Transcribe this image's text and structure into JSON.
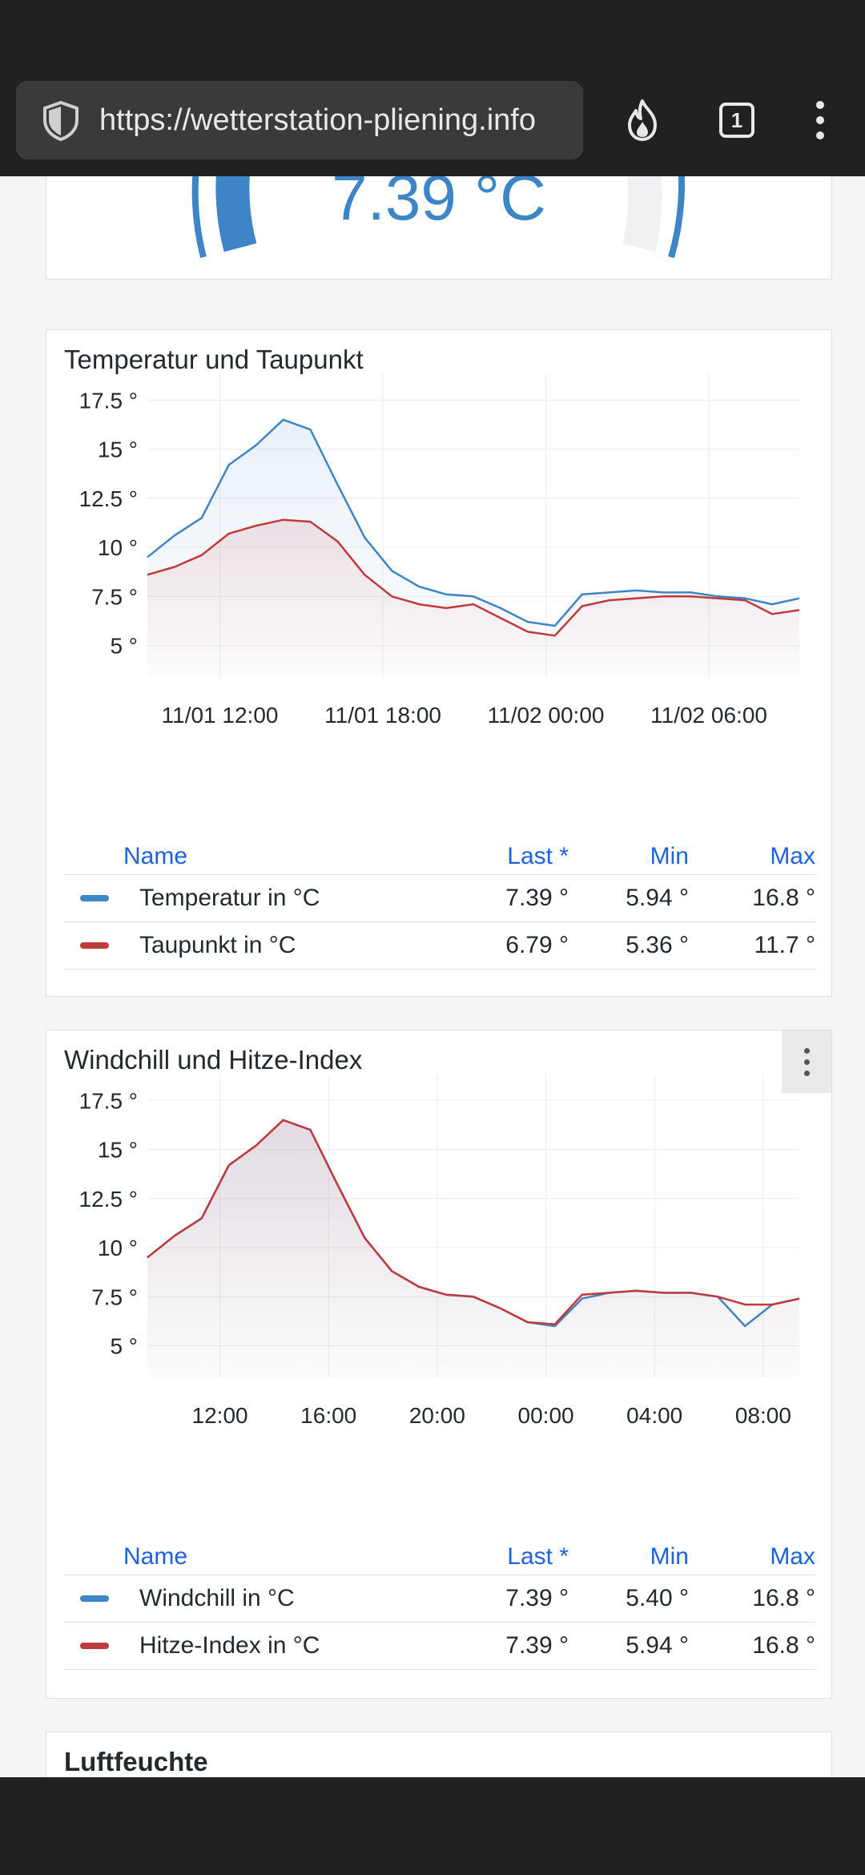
{
  "browser": {
    "url": "https://wetterstation-pliening.info",
    "tab_count": "1",
    "icons": {
      "shield": "shield-icon",
      "fire": "fire-icon",
      "tabs": "tabs-icon",
      "menu": "menu-icon"
    }
  },
  "gauge_panel": {
    "value": "7.39 °C",
    "color": "#3d85c6"
  },
  "panels": [
    {
      "title": "Temperatur und Taupunkt",
      "legend_headers": {
        "name": "Name",
        "last": "Last *",
        "min": "Min",
        "max": "Max"
      },
      "rows": [
        {
          "name": "Temperatur in °C",
          "last": "7.39 °",
          "min": "5.94 °",
          "max": "16.8 °",
          "color": "#3d85c6"
        },
        {
          "name": "Taupunkt in °C",
          "last": "6.79 °",
          "min": "5.36 °",
          "max": "11.7 °",
          "color": "#c0393b"
        }
      ]
    },
    {
      "title": "Windchill und Hitze-Index",
      "legend_headers": {
        "name": "Name",
        "last": "Last *",
        "min": "Min",
        "max": "Max"
      },
      "rows": [
        {
          "name": "Windchill in °C",
          "last": "7.39 °",
          "min": "5.40 °",
          "max": "16.8 °",
          "color": "#3d85c6"
        },
        {
          "name": "Hitze-Index in °C",
          "last": "7.39 °",
          "min": "5.94 °",
          "max": "16.8 °",
          "color": "#c0393b"
        }
      ]
    },
    {
      "title": "Luftfeuchte"
    }
  ],
  "chart_data": [
    {
      "type": "area",
      "title": "Temperatur und Taupunkt",
      "x_hours": [
        0,
        1,
        2,
        3,
        4,
        5,
        6,
        7,
        8,
        9,
        10,
        11,
        12,
        13,
        14,
        15,
        16,
        17,
        18,
        19,
        20,
        21,
        22,
        23,
        24
      ],
      "x_start": "11/01 09:20",
      "xticks": [
        {
          "label": "11/01 12:00",
          "hour": 2.67
        },
        {
          "label": "11/01 18:00",
          "hour": 8.67
        },
        {
          "label": "11/02 00:00",
          "hour": 14.67
        },
        {
          "label": "11/02 06:00",
          "hour": 20.67
        }
      ],
      "yticks": [
        "5 °",
        "7.5 °",
        "10 °",
        "12.5 °",
        "15 °",
        "17.5 °"
      ],
      "ylim": [
        4,
        18
      ],
      "series": [
        {
          "name": "Temperatur in °C",
          "color": "#3d85c6",
          "values": [
            9.5,
            10.6,
            11.5,
            14.2,
            15.2,
            16.5,
            16.0,
            13.2,
            10.5,
            8.8,
            8.0,
            7.6,
            7.5,
            6.9,
            6.2,
            6.0,
            7.6,
            7.7,
            7.8,
            7.7,
            7.7,
            7.5,
            7.4,
            7.1,
            7.4
          ]
        },
        {
          "name": "Taupunkt in °C",
          "color": "#c0393b",
          "values": [
            8.6,
            9.0,
            9.6,
            10.7,
            11.1,
            11.4,
            11.3,
            10.3,
            8.6,
            7.5,
            7.1,
            6.9,
            7.1,
            6.4,
            5.7,
            5.5,
            7.0,
            7.3,
            7.4,
            7.5,
            7.5,
            7.4,
            7.3,
            6.6,
            6.8
          ]
        }
      ],
      "grid": true
    },
    {
      "type": "area",
      "title": "Windchill und Hitze-Index",
      "x_hours": [
        0,
        1,
        2,
        3,
        4,
        5,
        6,
        7,
        8,
        9,
        10,
        11,
        12,
        13,
        14,
        15,
        16,
        17,
        18,
        19,
        20,
        21,
        22,
        23,
        24
      ],
      "x_start": "09:20",
      "xticks": [
        {
          "label": "12:00",
          "hour": 2.67
        },
        {
          "label": "16:00",
          "hour": 6.67
        },
        {
          "label": "20:00",
          "hour": 10.67
        },
        {
          "label": "00:00",
          "hour": 14.67
        },
        {
          "label": "04:00",
          "hour": 18.67
        },
        {
          "label": "08:00",
          "hour": 22.67
        }
      ],
      "yticks": [
        "5 °",
        "7.5 °",
        "10 °",
        "12.5 °",
        "15 °",
        "17.5 °"
      ],
      "ylim": [
        4,
        18
      ],
      "series": [
        {
          "name": "Windchill in °C",
          "color": "#3d85c6",
          "values": [
            9.5,
            10.6,
            11.5,
            14.2,
            15.2,
            16.5,
            16.0,
            13.2,
            10.5,
            8.8,
            8.0,
            7.6,
            7.5,
            6.9,
            6.2,
            6.0,
            7.4,
            7.7,
            7.8,
            7.7,
            7.7,
            7.5,
            6.0,
            7.1,
            7.4
          ]
        },
        {
          "name": "Hitze-Index in °C",
          "color": "#c0393b",
          "values": [
            9.5,
            10.6,
            11.5,
            14.2,
            15.2,
            16.5,
            16.0,
            13.2,
            10.5,
            8.8,
            8.0,
            7.6,
            7.5,
            6.9,
            6.2,
            6.1,
            7.6,
            7.7,
            7.8,
            7.7,
            7.7,
            7.5,
            7.1,
            7.1,
            7.4
          ]
        }
      ],
      "grid": true
    }
  ]
}
